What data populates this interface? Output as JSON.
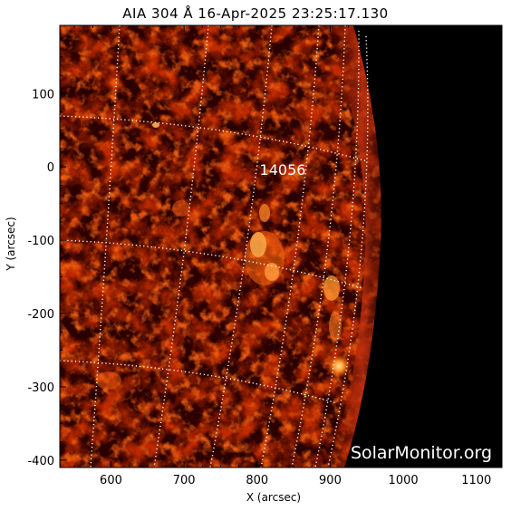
{
  "title": "AIA 304 Å 16-Apr-2025 23:25:17.130",
  "axes": {
    "xlabel": "X (arcsec)",
    "ylabel": "Y (arcsec)",
    "xticks": [
      "600",
      "700",
      "800",
      "900",
      "1000",
      "1100"
    ],
    "yticks": [
      "100",
      "0",
      "-100",
      "-200",
      "-300",
      "-400"
    ],
    "xlim": [
      530,
      1135
    ],
    "ylim": [
      -410,
      193
    ]
  },
  "active_region": "14056",
  "watermark": "SolarMonitor.org",
  "colors": {
    "background": "#000000",
    "chromosphere_dark": "#3a0000",
    "chromosphere_mid": "#b82800",
    "chromosphere_bright": "#ff9a30",
    "grid": "#ffffff"
  }
}
